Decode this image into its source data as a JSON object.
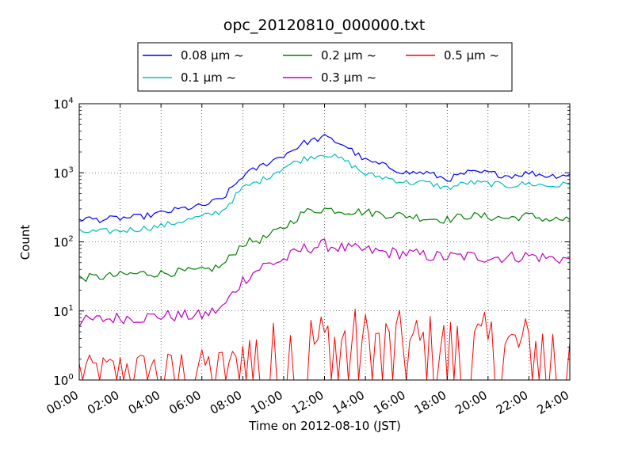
{
  "chart_data": {
    "type": "line",
    "title": "opc_20120810_000000.txt",
    "xlabel": "Time on 2012-08-10 (JST)",
    "ylabel": "Count",
    "xlim": [
      "2012-08-10 00:00",
      "2012-08-11 00:00"
    ],
    "x_tick_labels": [
      "00:00",
      "02:00",
      "04:00",
      "06:00",
      "08:00",
      "10:00",
      "12:00",
      "14:00",
      "16:00",
      "18:00",
      "20:00",
      "22:00",
      "24:00"
    ],
    "y_scale": "log",
    "ylim": [
      1,
      10000
    ],
    "y_tick_labels": [
      {
        "base": "10",
        "exp": "0"
      },
      {
        "base": "10",
        "exp": "1"
      },
      {
        "base": "10",
        "exp": "2"
      },
      {
        "base": "10",
        "exp": "3"
      },
      {
        "base": "10",
        "exp": "4"
      }
    ],
    "grid": true,
    "legend_position": "top",
    "x": [
      "00:00",
      "01:00",
      "02:00",
      "03:00",
      "04:00",
      "05:00",
      "06:00",
      "07:00",
      "08:00",
      "09:00",
      "10:00",
      "11:00",
      "12:00",
      "13:00",
      "14:00",
      "15:00",
      "16:00",
      "17:00",
      "18:00",
      "19:00",
      "20:00",
      "21:00",
      "22:00",
      "23:00",
      "24:00"
    ],
    "series": [
      {
        "name": "0.08 μm ~",
        "color": "#0000ff",
        "values": [
          220,
          210,
          220,
          230,
          260,
          300,
          330,
          420,
          900,
          1300,
          1800,
          2700,
          3300,
          2500,
          1500,
          1250,
          1000,
          1000,
          800,
          1000,
          1000,
          900,
          1000,
          900,
          950
        ]
      },
      {
        "name": "0.1 μm ~",
        "color": "#00bfbf",
        "values": [
          140,
          140,
          145,
          155,
          170,
          200,
          230,
          280,
          600,
          800,
          1200,
          1600,
          1900,
          1500,
          950,
          850,
          720,
          720,
          600,
          720,
          700,
          650,
          700,
          640,
          680
        ]
      },
      {
        "name": "0.2 μm ~",
        "color": "#008000",
        "values": [
          30,
          31,
          33,
          35,
          35,
          37,
          38,
          45,
          95,
          110,
          160,
          270,
          300,
          280,
          270,
          250,
          240,
          220,
          210,
          240,
          230,
          220,
          240,
          210,
          210
        ]
      },
      {
        "name": "0.3 μm ~",
        "color": "#bf00bf",
        "values": [
          7,
          7.5,
          8,
          8,
          8.5,
          8.5,
          8.5,
          11,
          28,
          45,
          55,
          80,
          90,
          80,
          75,
          70,
          68,
          63,
          60,
          62,
          60,
          60,
          63,
          58,
          57
        ]
      },
      {
        "name": "0.5 μm ~",
        "color": "#ff0000",
        "values": [
          1.3,
          1.3,
          1.4,
          1.4,
          1.4,
          1.5,
          1.5,
          1.6,
          2.8,
          3.0,
          3.5,
          4.2,
          4.5,
          4.2,
          4.0,
          3.8,
          3.7,
          3.6,
          3.5,
          3.6,
          3.6,
          3.5,
          3.6,
          3.5,
          3.5
        ]
      }
    ]
  }
}
